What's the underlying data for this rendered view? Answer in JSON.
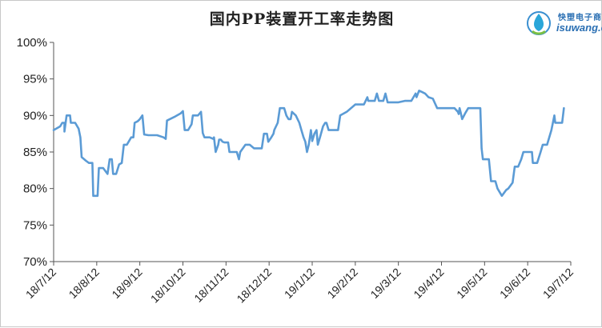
{
  "chart_data": {
    "type": "line",
    "title": "国内PP装置开工率走势图",
    "xlabel": "",
    "ylabel": "",
    "ylim": [
      70,
      100
    ],
    "yticks": [
      "70%",
      "75%",
      "80%",
      "85%",
      "90%",
      "95%",
      "100%"
    ],
    "xticks": [
      "18/7/12",
      "18/8/12",
      "18/9/12",
      "18/10/12",
      "18/11/12",
      "18/12/12",
      "19/1/12",
      "19/2/12",
      "19/3/12",
      "19/4/12",
      "19/5/12",
      "19/6/12",
      "19/7/12"
    ],
    "grid": false,
    "legend": "none",
    "line_color": "#5b9bd5",
    "series": [
      {
        "values": [
          [
            0.0,
            88.0
          ],
          [
            0.15,
            88.5
          ],
          [
            0.2,
            89.0
          ],
          [
            0.25,
            89.0
          ],
          [
            0.25,
            87.8
          ],
          [
            0.3,
            90.0
          ],
          [
            0.38,
            90.0
          ],
          [
            0.4,
            89.0
          ],
          [
            0.5,
            89.0
          ],
          [
            0.58,
            88.2
          ],
          [
            0.62,
            87.0
          ],
          [
            0.65,
            84.3
          ],
          [
            0.75,
            83.8
          ],
          [
            0.82,
            83.5
          ],
          [
            0.9,
            83.5
          ],
          [
            0.92,
            79.0
          ],
          [
            1.02,
            79.0
          ],
          [
            1.05,
            82.8
          ],
          [
            1.15,
            82.8
          ],
          [
            1.25,
            82.0
          ],
          [
            1.3,
            84.0
          ],
          [
            1.35,
            84.0
          ],
          [
            1.38,
            82.0
          ],
          [
            1.45,
            82.0
          ],
          [
            1.52,
            83.3
          ],
          [
            1.58,
            83.5
          ],
          [
            1.63,
            86.0
          ],
          [
            1.7,
            86.0
          ],
          [
            1.8,
            87.0
          ],
          [
            1.85,
            87.0
          ],
          [
            1.88,
            89.0
          ],
          [
            1.95,
            89.2
          ],
          [
            2.0,
            89.5
          ],
          [
            2.06,
            90.0
          ],
          [
            2.1,
            87.4
          ],
          [
            2.2,
            87.3
          ],
          [
            2.4,
            87.3
          ],
          [
            2.55,
            87.0
          ],
          [
            2.6,
            86.8
          ],
          [
            2.63,
            89.3
          ],
          [
            2.8,
            89.8
          ],
          [
            2.95,
            90.3
          ],
          [
            3.0,
            90.6
          ],
          [
            3.04,
            88.0
          ],
          [
            3.12,
            88.0
          ],
          [
            3.2,
            88.8
          ],
          [
            3.23,
            90.0
          ],
          [
            3.35,
            90.0
          ],
          [
            3.42,
            90.5
          ],
          [
            3.46,
            87.6
          ],
          [
            3.5,
            87.0
          ],
          [
            3.62,
            87.0
          ],
          [
            3.7,
            86.8
          ],
          [
            3.72,
            87.0
          ],
          [
            3.76,
            85.0
          ],
          [
            3.82,
            86.0
          ],
          [
            3.84,
            86.7
          ],
          [
            3.88,
            86.7
          ],
          [
            3.92,
            86.4
          ],
          [
            3.97,
            86.3
          ],
          [
            4.05,
            86.3
          ],
          [
            4.08,
            85.0
          ],
          [
            4.25,
            85.0
          ],
          [
            4.3,
            84.0
          ],
          [
            4.33,
            85.0
          ],
          [
            4.45,
            86.0
          ],
          [
            4.55,
            86.0
          ],
          [
            4.65,
            85.5
          ],
          [
            4.83,
            85.5
          ],
          [
            4.88,
            87.5
          ],
          [
            4.95,
            87.5
          ],
          [
            4.98,
            86.4
          ],
          [
            5.05,
            87.0
          ],
          [
            5.1,
            87.5
          ],
          [
            5.12,
            88.0
          ],
          [
            5.2,
            89.0
          ],
          [
            5.25,
            91.0
          ],
          [
            5.35,
            91.0
          ],
          [
            5.4,
            90.0
          ],
          [
            5.45,
            89.5
          ],
          [
            5.5,
            89.5
          ],
          [
            5.53,
            90.5
          ],
          [
            5.62,
            90.0
          ],
          [
            5.7,
            89.0
          ],
          [
            5.75,
            88.0
          ],
          [
            5.8,
            87.0
          ],
          [
            5.84,
            86.4
          ],
          [
            5.88,
            85.0
          ],
          [
            5.92,
            86.0
          ],
          [
            5.97,
            88.0
          ],
          [
            6.0,
            86.5
          ],
          [
            6.05,
            87.5
          ],
          [
            6.1,
            88.0
          ],
          [
            6.13,
            86.0
          ],
          [
            6.18,
            87.0
          ],
          [
            6.25,
            88.5
          ],
          [
            6.3,
            89.0
          ],
          [
            6.33,
            89.0
          ],
          [
            6.38,
            88.0
          ],
          [
            6.6,
            88.0
          ],
          [
            6.65,
            90.0
          ],
          [
            6.8,
            90.5
          ],
          [
            7.0,
            91.5
          ],
          [
            7.2,
            91.5
          ],
          [
            7.28,
            92.5
          ],
          [
            7.3,
            92.0
          ],
          [
            7.45,
            92.0
          ],
          [
            7.5,
            93.0
          ],
          [
            7.55,
            92.0
          ],
          [
            7.65,
            92.0
          ],
          [
            7.7,
            93.0
          ],
          [
            7.75,
            91.8
          ],
          [
            8.0,
            91.8
          ],
          [
            8.15,
            92.0
          ],
          [
            8.3,
            92.0
          ],
          [
            8.4,
            93.0
          ],
          [
            8.42,
            92.5
          ],
          [
            8.48,
            93.4
          ],
          [
            8.55,
            93.2
          ],
          [
            8.62,
            93.0
          ],
          [
            8.7,
            92.5
          ],
          [
            8.8,
            92.3
          ],
          [
            8.9,
            91.0
          ],
          [
            9.05,
            91.0
          ],
          [
            9.3,
            91.0
          ],
          [
            9.38,
            90.5
          ],
          [
            9.4,
            90.2
          ],
          [
            9.42,
            91.0
          ],
          [
            9.45,
            90.3
          ],
          [
            9.48,
            89.5
          ],
          [
            9.55,
            90.3
          ],
          [
            9.62,
            91.0
          ],
          [
            9.8,
            91.0
          ],
          [
            9.9,
            91.0
          ],
          [
            9.93,
            85.5
          ],
          [
            9.96,
            84.0
          ],
          [
            10.1,
            84.0
          ],
          [
            10.15,
            81.0
          ],
          [
            10.25,
            81.0
          ],
          [
            10.3,
            80.0
          ],
          [
            10.4,
            79.0
          ],
          [
            10.5,
            79.8
          ],
          [
            10.55,
            80.0
          ],
          [
            10.65,
            80.8
          ],
          [
            10.7,
            83.0
          ],
          [
            10.78,
            83.0
          ],
          [
            10.85,
            84.0
          ],
          [
            10.9,
            85.0
          ],
          [
            11.1,
            85.0
          ],
          [
            11.12,
            83.5
          ],
          [
            11.22,
            83.5
          ],
          [
            11.3,
            85.0
          ],
          [
            11.35,
            86.0
          ],
          [
            11.45,
            86.0
          ],
          [
            11.55,
            88.0
          ],
          [
            11.62,
            90.0
          ],
          [
            11.64,
            89.0
          ],
          [
            11.8,
            89.0
          ],
          [
            11.84,
            91.0
          ]
        ]
      }
    ]
  },
  "logo": {
    "cn": "快塑电子商",
    "en": "isuwang.co"
  }
}
